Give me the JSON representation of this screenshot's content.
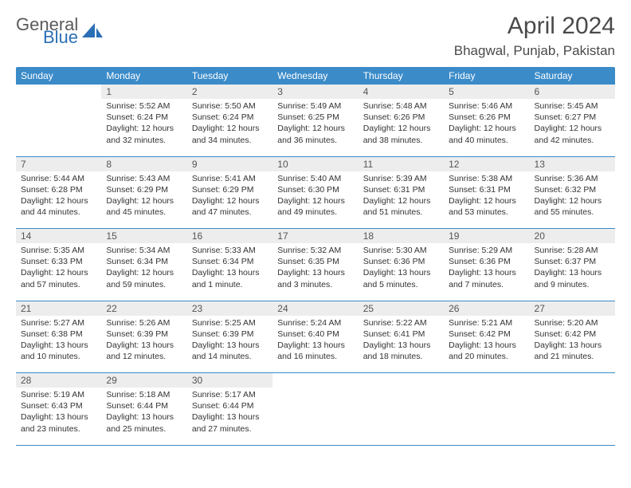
{
  "logo": {
    "general": "General",
    "blue": "Blue"
  },
  "title": "April 2024",
  "location": "Bhagwal, Punjab, Pakistan",
  "colors": {
    "header_bg": "#3b8bc9",
    "header_text": "#ffffff",
    "daynum_bg": "#ededed",
    "border": "#3b8bc9",
    "logo_blue": "#2a6fb5",
    "logo_gray": "#5a5a5a"
  },
  "weekdays": [
    "Sunday",
    "Monday",
    "Tuesday",
    "Wednesday",
    "Thursday",
    "Friday",
    "Saturday"
  ],
  "weeks": [
    {
      "nums": [
        "",
        "1",
        "2",
        "3",
        "4",
        "5",
        "6"
      ],
      "cells": [
        {
          "sunrise": "",
          "sunset": "",
          "daylight1": "",
          "daylight2": ""
        },
        {
          "sunrise": "Sunrise: 5:52 AM",
          "sunset": "Sunset: 6:24 PM",
          "daylight1": "Daylight: 12 hours",
          "daylight2": "and 32 minutes."
        },
        {
          "sunrise": "Sunrise: 5:50 AM",
          "sunset": "Sunset: 6:24 PM",
          "daylight1": "Daylight: 12 hours",
          "daylight2": "and 34 minutes."
        },
        {
          "sunrise": "Sunrise: 5:49 AM",
          "sunset": "Sunset: 6:25 PM",
          "daylight1": "Daylight: 12 hours",
          "daylight2": "and 36 minutes."
        },
        {
          "sunrise": "Sunrise: 5:48 AM",
          "sunset": "Sunset: 6:26 PM",
          "daylight1": "Daylight: 12 hours",
          "daylight2": "and 38 minutes."
        },
        {
          "sunrise": "Sunrise: 5:46 AM",
          "sunset": "Sunset: 6:26 PM",
          "daylight1": "Daylight: 12 hours",
          "daylight2": "and 40 minutes."
        },
        {
          "sunrise": "Sunrise: 5:45 AM",
          "sunset": "Sunset: 6:27 PM",
          "daylight1": "Daylight: 12 hours",
          "daylight2": "and 42 minutes."
        }
      ]
    },
    {
      "nums": [
        "7",
        "8",
        "9",
        "10",
        "11",
        "12",
        "13"
      ],
      "cells": [
        {
          "sunrise": "Sunrise: 5:44 AM",
          "sunset": "Sunset: 6:28 PM",
          "daylight1": "Daylight: 12 hours",
          "daylight2": "and 44 minutes."
        },
        {
          "sunrise": "Sunrise: 5:43 AM",
          "sunset": "Sunset: 6:29 PM",
          "daylight1": "Daylight: 12 hours",
          "daylight2": "and 45 minutes."
        },
        {
          "sunrise": "Sunrise: 5:41 AM",
          "sunset": "Sunset: 6:29 PM",
          "daylight1": "Daylight: 12 hours",
          "daylight2": "and 47 minutes."
        },
        {
          "sunrise": "Sunrise: 5:40 AM",
          "sunset": "Sunset: 6:30 PM",
          "daylight1": "Daylight: 12 hours",
          "daylight2": "and 49 minutes."
        },
        {
          "sunrise": "Sunrise: 5:39 AM",
          "sunset": "Sunset: 6:31 PM",
          "daylight1": "Daylight: 12 hours",
          "daylight2": "and 51 minutes."
        },
        {
          "sunrise": "Sunrise: 5:38 AM",
          "sunset": "Sunset: 6:31 PM",
          "daylight1": "Daylight: 12 hours",
          "daylight2": "and 53 minutes."
        },
        {
          "sunrise": "Sunrise: 5:36 AM",
          "sunset": "Sunset: 6:32 PM",
          "daylight1": "Daylight: 12 hours",
          "daylight2": "and 55 minutes."
        }
      ]
    },
    {
      "nums": [
        "14",
        "15",
        "16",
        "17",
        "18",
        "19",
        "20"
      ],
      "cells": [
        {
          "sunrise": "Sunrise: 5:35 AM",
          "sunset": "Sunset: 6:33 PM",
          "daylight1": "Daylight: 12 hours",
          "daylight2": "and 57 minutes."
        },
        {
          "sunrise": "Sunrise: 5:34 AM",
          "sunset": "Sunset: 6:34 PM",
          "daylight1": "Daylight: 12 hours",
          "daylight2": "and 59 minutes."
        },
        {
          "sunrise": "Sunrise: 5:33 AM",
          "sunset": "Sunset: 6:34 PM",
          "daylight1": "Daylight: 13 hours",
          "daylight2": "and 1 minute."
        },
        {
          "sunrise": "Sunrise: 5:32 AM",
          "sunset": "Sunset: 6:35 PM",
          "daylight1": "Daylight: 13 hours",
          "daylight2": "and 3 minutes."
        },
        {
          "sunrise": "Sunrise: 5:30 AM",
          "sunset": "Sunset: 6:36 PM",
          "daylight1": "Daylight: 13 hours",
          "daylight2": "and 5 minutes."
        },
        {
          "sunrise": "Sunrise: 5:29 AM",
          "sunset": "Sunset: 6:36 PM",
          "daylight1": "Daylight: 13 hours",
          "daylight2": "and 7 minutes."
        },
        {
          "sunrise": "Sunrise: 5:28 AM",
          "sunset": "Sunset: 6:37 PM",
          "daylight1": "Daylight: 13 hours",
          "daylight2": "and 9 minutes."
        }
      ]
    },
    {
      "nums": [
        "21",
        "22",
        "23",
        "24",
        "25",
        "26",
        "27"
      ],
      "cells": [
        {
          "sunrise": "Sunrise: 5:27 AM",
          "sunset": "Sunset: 6:38 PM",
          "daylight1": "Daylight: 13 hours",
          "daylight2": "and 10 minutes."
        },
        {
          "sunrise": "Sunrise: 5:26 AM",
          "sunset": "Sunset: 6:39 PM",
          "daylight1": "Daylight: 13 hours",
          "daylight2": "and 12 minutes."
        },
        {
          "sunrise": "Sunrise: 5:25 AM",
          "sunset": "Sunset: 6:39 PM",
          "daylight1": "Daylight: 13 hours",
          "daylight2": "and 14 minutes."
        },
        {
          "sunrise": "Sunrise: 5:24 AM",
          "sunset": "Sunset: 6:40 PM",
          "daylight1": "Daylight: 13 hours",
          "daylight2": "and 16 minutes."
        },
        {
          "sunrise": "Sunrise: 5:22 AM",
          "sunset": "Sunset: 6:41 PM",
          "daylight1": "Daylight: 13 hours",
          "daylight2": "and 18 minutes."
        },
        {
          "sunrise": "Sunrise: 5:21 AM",
          "sunset": "Sunset: 6:42 PM",
          "daylight1": "Daylight: 13 hours",
          "daylight2": "and 20 minutes."
        },
        {
          "sunrise": "Sunrise: 5:20 AM",
          "sunset": "Sunset: 6:42 PM",
          "daylight1": "Daylight: 13 hours",
          "daylight2": "and 21 minutes."
        }
      ]
    },
    {
      "nums": [
        "28",
        "29",
        "30",
        "",
        "",
        "",
        ""
      ],
      "cells": [
        {
          "sunrise": "Sunrise: 5:19 AM",
          "sunset": "Sunset: 6:43 PM",
          "daylight1": "Daylight: 13 hours",
          "daylight2": "and 23 minutes."
        },
        {
          "sunrise": "Sunrise: 5:18 AM",
          "sunset": "Sunset: 6:44 PM",
          "daylight1": "Daylight: 13 hours",
          "daylight2": "and 25 minutes."
        },
        {
          "sunrise": "Sunrise: 5:17 AM",
          "sunset": "Sunset: 6:44 PM",
          "daylight1": "Daylight: 13 hours",
          "daylight2": "and 27 minutes."
        },
        {
          "sunrise": "",
          "sunset": "",
          "daylight1": "",
          "daylight2": ""
        },
        {
          "sunrise": "",
          "sunset": "",
          "daylight1": "",
          "daylight2": ""
        },
        {
          "sunrise": "",
          "sunset": "",
          "daylight1": "",
          "daylight2": ""
        },
        {
          "sunrise": "",
          "sunset": "",
          "daylight1": "",
          "daylight2": ""
        }
      ]
    }
  ]
}
